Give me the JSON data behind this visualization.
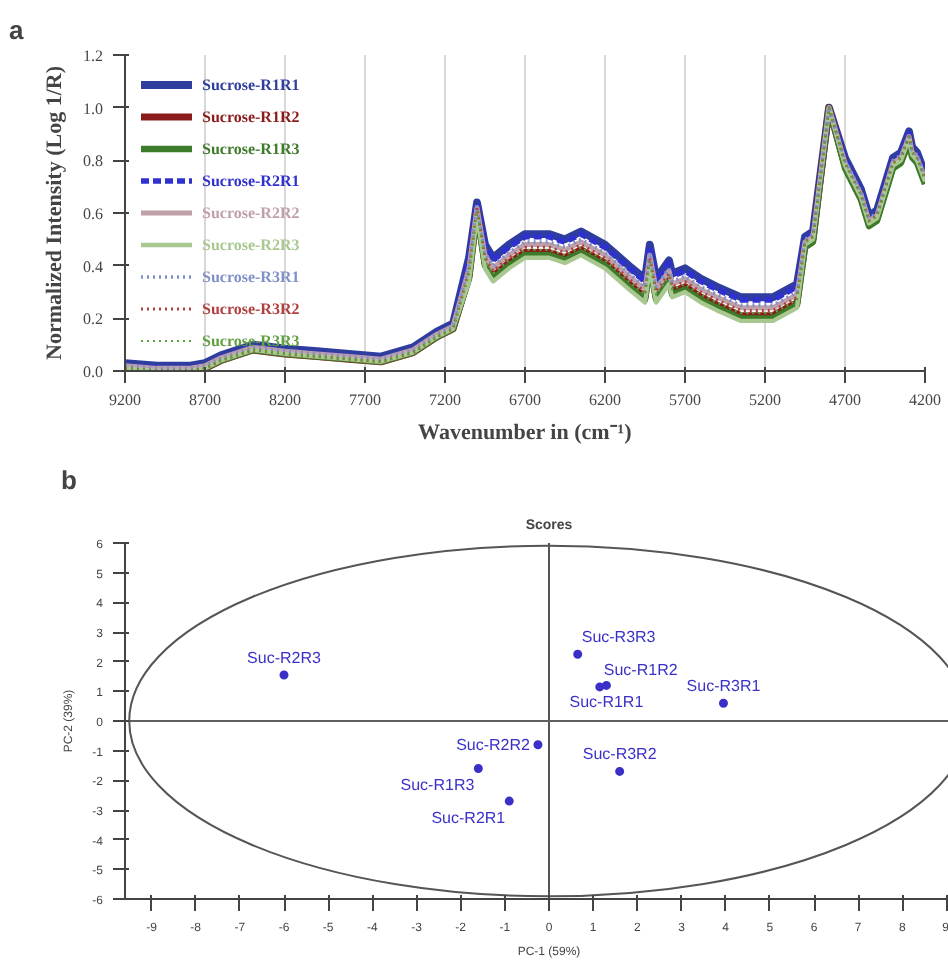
{
  "chart_data": [
    {
      "type": "line",
      "annotations": [
        "a"
      ],
      "xlabel": "Wavenumber in (cm⁻¹)",
      "ylabel": "Normalized Intensity (Log 1/R)",
      "xlim": [
        9200,
        4200
      ],
      "xticks": [
        9200,
        8700,
        8200,
        7700,
        7200,
        6700,
        6200,
        5700,
        5200,
        4700,
        4200
      ],
      "ylim": [
        0,
        1.2
      ],
      "yticks": [
        {
          "value": 0,
          "label": "0.0"
        },
        0.2,
        0.4,
        0.6,
        0.8,
        {
          "value": 1,
          "label": "1.0"
        },
        1.2
      ],
      "grid": "x",
      "legend": "left",
      "x": [
        9200,
        9000,
        8800,
        8700,
        8600,
        8400,
        8200,
        8000,
        7800,
        7600,
        7400,
        7250,
        7150,
        7050,
        7000,
        6950,
        6900,
        6800,
        6700,
        6550,
        6450,
        6350,
        6200,
        6050,
        5950,
        5920,
        5880,
        5800,
        5780,
        5700,
        5600,
        5500,
        5350,
        5150,
        5000,
        4950,
        4900,
        4800,
        4700,
        4600,
        4550,
        4500,
        4400,
        4350,
        4300,
        4280,
        4250,
        4200
      ],
      "series": [
        {
          "name": "Sucrose-R1R1",
          "color": "#2e3d9e",
          "line_style": "solid",
          "values": [
            0.03,
            0.02,
            0.02,
            0.03,
            0.06,
            0.1,
            0.085,
            0.075,
            0.065,
            0.055,
            0.09,
            0.15,
            0.18,
            0.43,
            0.64,
            0.48,
            0.43,
            0.48,
            0.52,
            0.52,
            0.5,
            0.53,
            0.48,
            0.4,
            0.35,
            0.48,
            0.35,
            0.42,
            0.37,
            0.39,
            0.35,
            0.32,
            0.28,
            0.28,
            0.33,
            0.51,
            0.53,
            1.0,
            0.81,
            0.69,
            0.59,
            0.61,
            0.81,
            0.83,
            0.91,
            0.85,
            0.83,
            0.75
          ]
        },
        {
          "name": "Sucrose-R1R2",
          "color": "#8b1a1a",
          "line_style": "solid",
          "values": [
            0.01,
            0,
            0,
            0.01,
            0.04,
            0.08,
            0.065,
            0.055,
            0.045,
            0.035,
            0.07,
            0.13,
            0.16,
            0.36,
            0.61,
            0.41,
            0.36,
            0.41,
            0.45,
            0.45,
            0.43,
            0.46,
            0.41,
            0.33,
            0.28,
            0.41,
            0.28,
            0.35,
            0.3,
            0.32,
            0.28,
            0.25,
            0.21,
            0.21,
            0.26,
            0.48,
            0.5,
            1.0,
            0.78,
            0.66,
            0.56,
            0.58,
            0.78,
            0.8,
            0.88,
            0.82,
            0.8,
            0.72
          ]
        },
        {
          "name": "Sucrose-R1R3",
          "color": "#3d7a2a",
          "line_style": "solid",
          "values": [
            0.01,
            0,
            0,
            0.01,
            0.04,
            0.08,
            0.065,
            0.055,
            0.045,
            0.035,
            0.07,
            0.13,
            0.16,
            0.35,
            0.6,
            0.4,
            0.35,
            0.4,
            0.44,
            0.44,
            0.42,
            0.45,
            0.4,
            0.32,
            0.27,
            0.4,
            0.27,
            0.34,
            0.29,
            0.31,
            0.27,
            0.24,
            0.2,
            0.2,
            0.25,
            0.47,
            0.49,
            1.0,
            0.77,
            0.65,
            0.55,
            0.57,
            0.77,
            0.79,
            0.87,
            0.81,
            0.79,
            0.71
          ]
        },
        {
          "name": "Sucrose-R2R1",
          "color": "#3030d0",
          "line_style": "dashed",
          "values": [
            0.02,
            0.01,
            0.01,
            0.02,
            0.05,
            0.09,
            0.075,
            0.065,
            0.055,
            0.045,
            0.08,
            0.14,
            0.17,
            0.42,
            0.64,
            0.47,
            0.42,
            0.47,
            0.51,
            0.51,
            0.49,
            0.52,
            0.47,
            0.39,
            0.34,
            0.47,
            0.34,
            0.41,
            0.36,
            0.38,
            0.34,
            0.31,
            0.27,
            0.27,
            0.32,
            0.5,
            0.52,
            1.0,
            0.8,
            0.68,
            0.58,
            0.6,
            0.8,
            0.82,
            0.9,
            0.84,
            0.82,
            0.74
          ]
        },
        {
          "name": "Sucrose-R2R2",
          "color": "#c0a0a8",
          "line_style": "solid",
          "values": [
            0.02,
            0.01,
            0.01,
            0.02,
            0.05,
            0.09,
            0.075,
            0.065,
            0.055,
            0.045,
            0.08,
            0.14,
            0.17,
            0.39,
            0.62,
            0.44,
            0.39,
            0.44,
            0.48,
            0.48,
            0.46,
            0.49,
            0.44,
            0.36,
            0.31,
            0.44,
            0.31,
            0.38,
            0.33,
            0.35,
            0.31,
            0.28,
            0.24,
            0.24,
            0.29,
            0.49,
            0.51,
            1.0,
            0.79,
            0.67,
            0.57,
            0.59,
            0.79,
            0.81,
            0.89,
            0.83,
            0.81,
            0.73
          ]
        },
        {
          "name": "Sucrose-R2R3",
          "color": "#a8c890",
          "line_style": "solid",
          "values": [
            0.01,
            0,
            0,
            0.01,
            0.04,
            0.08,
            0.065,
            0.055,
            0.045,
            0.035,
            0.07,
            0.13,
            0.16,
            0.34,
            0.59,
            0.39,
            0.34,
            0.39,
            0.43,
            0.43,
            0.41,
            0.44,
            0.39,
            0.31,
            0.26,
            0.39,
            0.26,
            0.33,
            0.28,
            0.3,
            0.26,
            0.23,
            0.19,
            0.19,
            0.24,
            0.48,
            0.5,
            1.0,
            0.78,
            0.66,
            0.56,
            0.58,
            0.78,
            0.8,
            0.88,
            0.82,
            0.8,
            0.72
          ]
        },
        {
          "name": "Sucrose-R3R1",
          "color": "#8090c8",
          "line_style": "dotted",
          "values": [
            0.02,
            0.01,
            0.01,
            0.02,
            0.05,
            0.09,
            0.075,
            0.065,
            0.055,
            0.045,
            0.08,
            0.14,
            0.17,
            0.4,
            0.63,
            0.45,
            0.4,
            0.45,
            0.49,
            0.49,
            0.47,
            0.5,
            0.45,
            0.37,
            0.32,
            0.45,
            0.32,
            0.39,
            0.34,
            0.36,
            0.32,
            0.29,
            0.25,
            0.25,
            0.3,
            0.5,
            0.52,
            1.0,
            0.8,
            0.68,
            0.58,
            0.6,
            0.8,
            0.82,
            0.9,
            0.84,
            0.82,
            0.74
          ]
        },
        {
          "name": "Sucrose-R3R2",
          "color": "#b04040",
          "line_style": "dotted",
          "values": [
            0.01,
            0,
            0,
            0.01,
            0.04,
            0.08,
            0.065,
            0.055,
            0.045,
            0.035,
            0.07,
            0.13,
            0.16,
            0.38,
            0.62,
            0.43,
            0.38,
            0.43,
            0.47,
            0.47,
            0.45,
            0.48,
            0.43,
            0.35,
            0.3,
            0.43,
            0.3,
            0.37,
            0.32,
            0.34,
            0.3,
            0.27,
            0.23,
            0.23,
            0.28,
            0.49,
            0.51,
            1.0,
            0.79,
            0.67,
            0.57,
            0.59,
            0.79,
            0.81,
            0.89,
            0.83,
            0.81,
            0.73
          ]
        },
        {
          "name": "Sucrose-R3R3",
          "color": "#60a040",
          "line_style": "dotted",
          "values": [
            0.01,
            0,
            0,
            0.01,
            0.04,
            0.08,
            0.065,
            0.055,
            0.045,
            0.035,
            0.07,
            0.13,
            0.16,
            0.37,
            0.61,
            0.42,
            0.37,
            0.42,
            0.46,
            0.46,
            0.44,
            0.47,
            0.42,
            0.34,
            0.29,
            0.42,
            0.29,
            0.36,
            0.31,
            0.33,
            0.29,
            0.26,
            0.22,
            0.22,
            0.27,
            0.49,
            0.51,
            1.0,
            0.79,
            0.67,
            0.57,
            0.59,
            0.79,
            0.81,
            0.89,
            0.83,
            0.81,
            0.73
          ]
        }
      ]
    },
    {
      "type": "scatter",
      "title": "Scores",
      "annotations": [
        "b"
      ],
      "xlabel": "PC-1 (59%)",
      "ylabel": "PC-2 (39%)",
      "xlim": [
        -9.6,
        9.6
      ],
      "xticks": [
        -9,
        -8,
        -7,
        -6,
        -5,
        -4,
        -3,
        -2,
        -1,
        0,
        1,
        2,
        3,
        4,
        5,
        6,
        7,
        8,
        9
      ],
      "ylim": [
        -6,
        6
      ],
      "yticks": [
        -6,
        -5,
        -4,
        -3,
        -2,
        -1,
        0,
        1,
        2,
        3,
        4,
        5,
        6
      ],
      "ref_lines": [
        {
          "axis": "x",
          "value": 0,
          "color": "#555555"
        },
        {
          "axis": "y",
          "value": 0,
          "color": "#606060"
        }
      ],
      "series": [
        {
          "type": "scatter",
          "color": "#3a30c8",
          "marker": "circle",
          "x": [
            -6,
            0.65,
            1.15,
            1.3,
            3.95,
            -0.25,
            -1.6,
            1.6,
            -0.9
          ],
          "values": [
            1.55,
            2.25,
            1.15,
            1.2,
            0.6,
            -0.8,
            -1.6,
            -1.7,
            -2.7
          ],
          "value_labels": [
            "Suc-R2R3",
            "Suc-R3R3",
            "Suc-R1R2",
            "Suc-R1R1",
            "Suc-R3R1",
            "Suc-R2R2",
            "Suc-R1R3",
            "Suc-R3R2",
            "Suc-R2R1"
          ]
        }
      ]
    }
  ]
}
